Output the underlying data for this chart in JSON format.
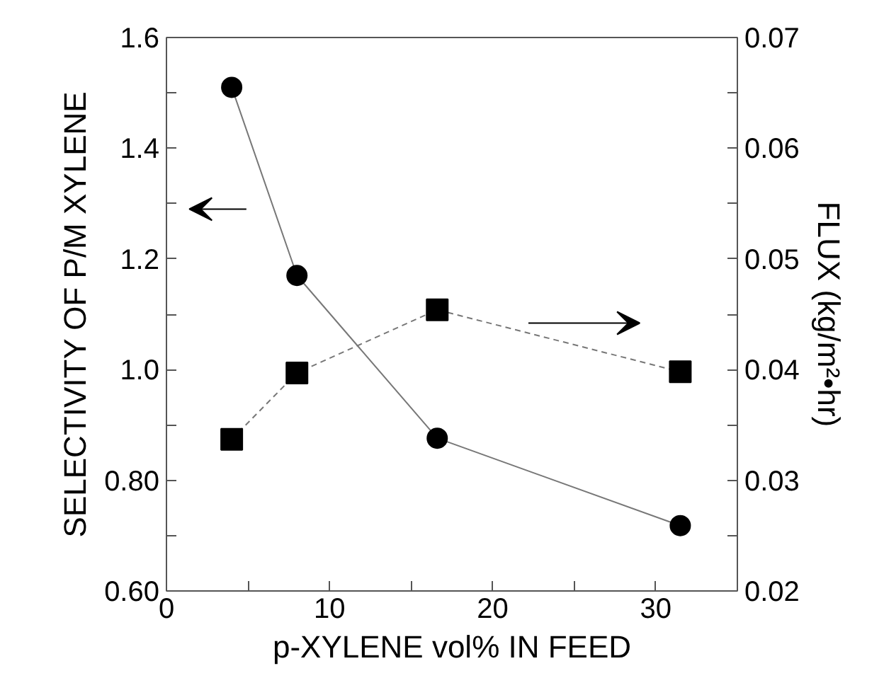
{
  "chart_data": {
    "type": "line",
    "xlabel": "p-XYLENE vol% IN FEED",
    "ylabel": "SELECTIVITY OF P/M XYLENE",
    "y2label": "FLUX (kg/m²•hr)",
    "xlim": [
      0,
      35
    ],
    "xticks": [
      0,
      {
        "value": 5,
        "label": null
      },
      10,
      {
        "value": 15,
        "label": null
      },
      20,
      {
        "value": 25,
        "label": null
      },
      30
    ],
    "ylim": [
      0.6,
      1.6
    ],
    "yticks": [
      {
        "value": 0.6,
        "label": "0.60"
      },
      {
        "value": 0.7,
        "label": null
      },
      {
        "value": 0.8,
        "label": "0.80"
      },
      {
        "value": 0.9,
        "label": null
      },
      {
        "value": 1.0,
        "label": "1.0"
      },
      {
        "value": 1.1,
        "label": null
      },
      1.2,
      {
        "value": 1.3,
        "label": null
      },
      1.4,
      {
        "value": 1.5,
        "label": null
      },
      1.6
    ],
    "y2lim": [
      0.02,
      0.07
    ],
    "y2ticks": [
      0.02,
      {
        "value": 0.025,
        "label": null
      },
      0.03,
      {
        "value": 0.035,
        "label": null
      },
      0.04,
      {
        "value": 0.045,
        "label": null
      },
      0.05,
      {
        "value": 0.055,
        "label": null
      },
      0.06,
      {
        "value": 0.065,
        "label": null
      },
      0.07
    ],
    "grid": false,
    "series": [
      {
        "color": "#000000",
        "x": [
          4,
          8,
          16.6,
          31.5
        ],
        "values": [
          1.51,
          1.17,
          0.876,
          0.718
        ],
        "marker": "circle",
        "line_style": "solid"
      },
      {
        "color": "#000000",
        "x": [
          4,
          8,
          16.6,
          31.5
        ],
        "values": [
          0.0337,
          0.0397,
          0.0454,
          0.0398
        ],
        "marker": "square",
        "line_style": "dashed",
        "axis": "y2"
      }
    ]
  }
}
